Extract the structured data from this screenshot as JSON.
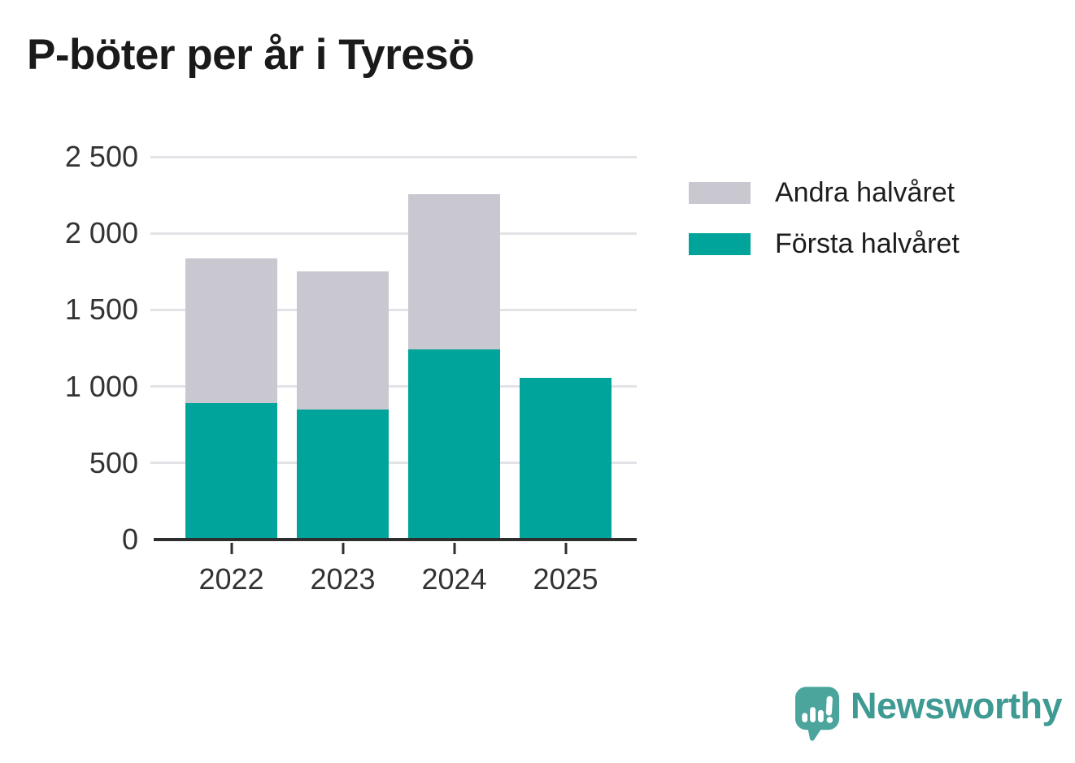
{
  "title": "P-böter per år i Tyresö",
  "legend": [
    {
      "label": "Andra halvåret",
      "color": "#c9c7d0"
    },
    {
      "label": "Första halvåret",
      "color": "#00a49b"
    }
  ],
  "chart_data": {
    "type": "bar",
    "stacked": true,
    "title": "P-böter per år i Tyresö",
    "categories": [
      "2022",
      "2023",
      "2024",
      "2025"
    ],
    "series": [
      {
        "name": "Första halvåret",
        "color": "#00a49b",
        "values": [
          890,
          850,
          1240,
          1055
        ]
      },
      {
        "name": "Andra halvåret",
        "color": "#c9c7d0",
        "values": [
          945,
          900,
          1015,
          0
        ]
      }
    ],
    "totals": [
      1835,
      1750,
      2255,
      1055
    ],
    "xlabel": "",
    "ylabel": "",
    "ylim": [
      0,
      2500
    ],
    "yticks": [
      0,
      500,
      1000,
      1500,
      2000,
      2500
    ],
    "ytick_labels": [
      "0",
      "500",
      "1 000",
      "1 500",
      "2 000",
      "2 500"
    ],
    "grid": true,
    "legend_position": "right",
    "colors": {
      "axis": "#2e2e2e",
      "gridline": "#e3e2e6",
      "tick_label": "#333333",
      "title": "#1a1a1a"
    }
  },
  "branding": {
    "logo_text": "Newsworthy",
    "logo_color": "#3e9a92",
    "icon": "newsworthy-speech-bubble-chart-icon",
    "icon_color": "#4ba59d"
  }
}
